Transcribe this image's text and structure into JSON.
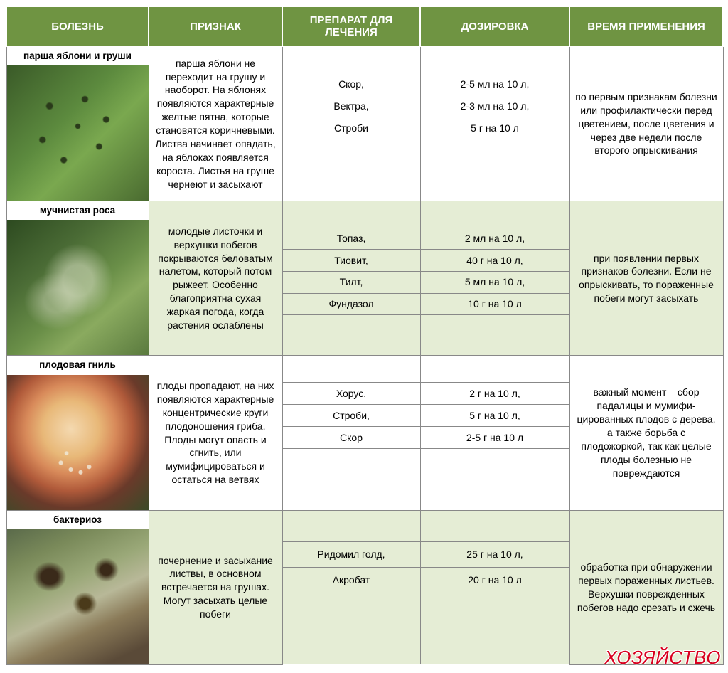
{
  "headers": {
    "disease": "Болезнь",
    "sign": "Признак",
    "drug": "Препарат для лечения",
    "dosage": "Дозировка",
    "timing": "Время применения"
  },
  "col_widths": {
    "disease": 200,
    "sign": 188,
    "drug": 194,
    "dosage": 210,
    "timing": 216
  },
  "rows": [
    {
      "tint": false,
      "disease": "парша яблони и груши",
      "image": {
        "type": "leaf-spots",
        "bg": "linear-gradient(135deg,#3a5a28 0%,#5c8a3e 40%,#7aa84f 60%,#4a6b30 100%)",
        "overlay": "radial-gradient(circle at 30% 30%,#2a3a1a 2%,transparent 3%),radial-gradient(circle at 50% 45%,#2a3a1a 2%,transparent 3%),radial-gradient(circle at 65% 60%,#2a3a1a 2%,transparent 3%),radial-gradient(circle at 40% 70%,#2a3a1a 2%,transparent 3%),radial-gradient(circle at 55% 25%,#2a3a1a 2%,transparent 3%),radial-gradient(circle at 25% 55%,#2a3a1a 2%,transparent 3%),radial-gradient(circle at 70% 40%,#2a3a1a 2%,transparent 3%)"
      },
      "sign": "парша яблони не переходит на грушу и наоборот. На яблонях появляются характерные желтые пятна, которые становятся коричневыми. Листва начинает опадать, на яблоках появляется короста. Листья на груше чернеют и засыхают",
      "drugs": [
        {
          "name": "Скор,",
          "dose": "2-5 мл на 10 л,"
        },
        {
          "name": "Вектра,",
          "dose": "2-3 мл на 10 л,"
        },
        {
          "name": "Строби",
          "dose": "5 г на 10 л"
        }
      ],
      "pad_rows": 3,
      "timing": "по первым признакам болезни или профи­лактически перед цветением, после цветения и через две недели после второго опрыскивания"
    },
    {
      "tint": true,
      "disease": "мучнистая роса",
      "image": {
        "type": "powdery",
        "bg": "linear-gradient(140deg,#2d4a20 0%,#4a6b35 30%,#6a8f48 55%,#8aaa5f 70%,#5a7a3e 100%)",
        "overlay": "radial-gradient(ellipse at 50% 45%,rgba(220,225,200,0.55) 15%,transparent 35%),radial-gradient(ellipse at 35% 60%,rgba(210,215,190,0.45) 10%,transparent 25%)"
      },
      "sign": "молодые листочки и верхушки побегов покрываются беловатым налетом, который потом рыжеет. Особенно благоприятна сухая жаркая погода, когда растения ослаблены",
      "drugs": [
        {
          "name": "Топаз,",
          "dose": "2 мл на 10 л,"
        },
        {
          "name": "Тиовит,",
          "dose": "40 г на 10 л,"
        },
        {
          "name": "Тилт,",
          "dose": "5 мл на 10 л,"
        },
        {
          "name": "Фундазол",
          "dose": "10 г на 10 л"
        }
      ],
      "pad_rows": 2,
      "timing": "при появлении первых признаков болезни. Если не опрыскивать, то пораженные побеги могут засыхать"
    },
    {
      "tint": false,
      "disease": "плодовая гниль",
      "image": {
        "type": "fruit-rot",
        "bg": "radial-gradient(circle at 45% 40%,#f4d9b0 0%,#e8b878 25%,#d88a5a 40%,#b05a3a 55%,#6a3a2a 70%,#3a4a28 100%)",
        "overlay": "radial-gradient(circle at 38% 65%,rgba(240,235,220,0.8) 1.5%,transparent 2%),radial-gradient(circle at 45% 70%,rgba(240,235,220,0.8) 1.5%,transparent 2%),radial-gradient(circle at 52% 72%,rgba(240,235,220,0.8) 1.5%,transparent 2%),radial-gradient(circle at 58% 68%,rgba(240,235,220,0.8) 1.5%,transparent 2%),radial-gradient(circle at 42% 58%,rgba(240,235,220,0.8) 1.5%,transparent 2%)"
      },
      "sign": "плоды пропадают, на них появляются характерные концентрические круги плодоношения гриба. Плоды могут опасть и сгнить, или мумифицироваться и остаться на ветвях",
      "drugs": [
        {
          "name": "Хорус,",
          "dose": "2 г на 10 л,"
        },
        {
          "name": "Строби,",
          "dose": "5 г на 10 л,"
        },
        {
          "name": "Скор",
          "dose": "2-5 г на 10 л"
        }
      ],
      "pad_rows": 3,
      "timing": "важный момент – сбор падалицы и мумифи­цированных плодов с дерева, а также борьба с плодожоркой, так как целые плоды болезнью не повреждаются"
    },
    {
      "tint": true,
      "disease": "бактериоз",
      "image": {
        "type": "blight",
        "bg": "linear-gradient(155deg,#5a6a4a 0%,#7a8a5a 20%,#9aa878 40%,#b8b898 55%,#8a7a58 70%,#5a4a38 90%)",
        "overlay": "radial-gradient(ellipse at 30% 35%,#3a2a1a 6%,transparent 12%),radial-gradient(ellipse at 55% 55%,#4a3a1a 5%,transparent 11%),radial-gradient(ellipse at 70% 30%,#3a2a18 4%,transparent 9%)"
      },
      "sign": "почернение и засыхание листвы, в основном встречается на грушах. Могут засыхать целые побеги",
      "drugs": [
        {
          "name": "Ридомил голд,",
          "dose": "25 г на 10 л,"
        },
        {
          "name": "Акробат",
          "dose": "20 г на 10 л"
        }
      ],
      "pad_rows": 3,
      "timing": "обработка при об­наружении первых пораженных листьев. Верхушки поврежден­ных побегов надо срезать и сжечь"
    }
  ],
  "watermark": "ХОЗЯЙСТВО"
}
